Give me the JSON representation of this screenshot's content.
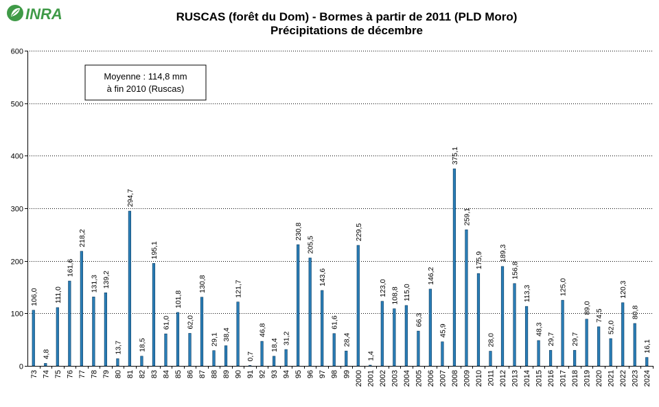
{
  "logo": {
    "text": "INRA"
  },
  "title_lines": [
    "RUSCAS (forêt du Dom) - Bormes à partir de 2011 (PLD Moro)",
    "Précipitations de décembre"
  ],
  "annotation": {
    "lines": [
      "Moyenne : 114,8 mm",
      "à fin 2010 (Ruscas)"
    ]
  },
  "colors": {
    "bar_fill": "#2a7db6",
    "bar_stroke": "#0d3b5e",
    "grid": "#000000",
    "text": "#000000"
  },
  "chart_data": {
    "type": "bar",
    "title": "RUSCAS (forêt du Dom) - Bormes à partir de 2011 (PLD Moro) — Précipitations de décembre",
    "categories": [
      "73",
      "74",
      "75",
      "76",
      "77",
      "78",
      "79",
      "80",
      "81",
      "82",
      "83",
      "84",
      "85",
      "86",
      "87",
      "88",
      "89",
      "90",
      "91",
      "92",
      "93",
      "94",
      "95",
      "96",
      "97",
      "98",
      "99",
      "2000",
      "2001",
      "2002",
      "2003",
      "2004",
      "2005",
      "2006",
      "2007",
      "2008",
      "2009",
      "2010",
      "2011",
      "2012",
      "2013",
      "2014",
      "2015",
      "2016",
      "2017",
      "2018",
      "2019",
      "2020",
      "2021",
      "2022",
      "2023",
      "2024"
    ],
    "values": [
      106.0,
      4.8,
      111.0,
      161.6,
      218.2,
      131.3,
      139.2,
      13.7,
      294.7,
      18.5,
      195.1,
      61.0,
      101.8,
      62.0,
      130.8,
      29.1,
      38.4,
      121.7,
      0.7,
      46.8,
      18.4,
      31.2,
      230.8,
      205.5,
      143.6,
      61.6,
      28.4,
      229.5,
      1.4,
      123.0,
      108.8,
      115.0,
      66.3,
      146.2,
      45.9,
      375.1,
      259.1,
      175.9,
      28.0,
      189.3,
      156.8,
      113.3,
      48.3,
      29.7,
      125.0,
      29.7,
      89.0,
      74.5,
      52.0,
      120.3,
      80.8,
      16.1
    ],
    "value_labels": [
      "106,0",
      "4,8",
      "111,0",
      "161,6",
      "218,2",
      "131,3",
      "139,2",
      "13,7",
      "294,7",
      "18,5",
      "195,1",
      "61,0",
      "101,8",
      "62,0",
      "130,8",
      "29,1",
      "38,4",
      "121,7",
      "0,7",
      "46,8",
      "18,4",
      "31,2",
      "230,8",
      "205,5",
      "143,6",
      "61,6",
      "28,4",
      "229,5",
      "1,4",
      "123,0",
      "108,8",
      "115,0",
      "66,3",
      "146,2",
      "45,9",
      "375,1",
      "259,1",
      "175,9",
      "28,0",
      "189,3",
      "156,8",
      "113,3",
      "48,3",
      "29,7",
      "125,0",
      "29,7",
      "89,0",
      "74,5",
      "52,0",
      "120,3",
      "80,8",
      "16,1"
    ],
    "y_ticks": [
      "0",
      "100",
      "200",
      "300",
      "400",
      "500",
      "600"
    ],
    "ylim": [
      0,
      600
    ],
    "grid": true,
    "gridlines": "horizontal dotted",
    "xlabel": "",
    "ylabel": ""
  }
}
